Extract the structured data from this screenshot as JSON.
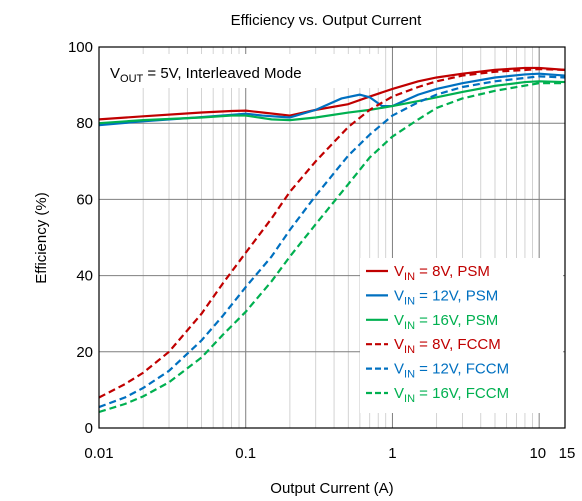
{
  "chart_data": {
    "type": "line",
    "title": "Efficiency vs. Output Current",
    "xlabel": "Output Current (A)",
    "ylabel": "Efficiency (%)",
    "x_scale": "log",
    "xlim": [
      0.01,
      15
    ],
    "ylim": [
      0,
      100
    ],
    "x_ticks": [
      {
        "value": 0.01,
        "label": "0.01"
      },
      {
        "value": 0.1,
        "label": "0.1"
      },
      {
        "value": 1,
        "label": "1"
      },
      {
        "value": 10,
        "label": "10"
      },
      {
        "value": 15,
        "label": "15"
      }
    ],
    "y_ticks": [
      {
        "value": 0,
        "label": "0"
      },
      {
        "value": 20,
        "label": "20"
      },
      {
        "value": 40,
        "label": "40"
      },
      {
        "value": 60,
        "label": "60"
      },
      {
        "value": 80,
        "label": "80"
      },
      {
        "value": 100,
        "label": "100"
      }
    ],
    "grid": true,
    "legend_position": "bottom-right",
    "annotation": {
      "main": "V",
      "sub": "OUT",
      "rest": " = 5V, Interleaved Mode"
    },
    "series": [
      {
        "name": "V_IN = 8V, PSM",
        "legend": {
          "main": "V",
          "sub": "IN",
          "rest": " = 8V, PSM"
        },
        "color": "#c00000",
        "dash": "solid",
        "points": [
          [
            0.01,
            81
          ],
          [
            0.02,
            81.8
          ],
          [
            0.05,
            82.8
          ],
          [
            0.08,
            83.2
          ],
          [
            0.1,
            83.3
          ],
          [
            0.13,
            82.8
          ],
          [
            0.2,
            82
          ],
          [
            0.3,
            83.5
          ],
          [
            0.5,
            85
          ],
          [
            0.7,
            87
          ],
          [
            1,
            89
          ],
          [
            1.5,
            91
          ],
          [
            2,
            92
          ],
          [
            3,
            93
          ],
          [
            5,
            94
          ],
          [
            8,
            94.5
          ],
          [
            10,
            94.5
          ],
          [
            15,
            94
          ]
        ]
      },
      {
        "name": "V_IN = 12V, PSM",
        "legend": {
          "main": "V",
          "sub": "IN",
          "rest": " = 12V, PSM"
        },
        "color": "#0070c0",
        "dash": "solid",
        "points": [
          [
            0.01,
            79.5
          ],
          [
            0.02,
            80.5
          ],
          [
            0.05,
            81.6
          ],
          [
            0.08,
            82.2
          ],
          [
            0.1,
            82.5
          ],
          [
            0.13,
            82
          ],
          [
            0.2,
            81.5
          ],
          [
            0.3,
            83.5
          ],
          [
            0.45,
            86.5
          ],
          [
            0.6,
            87.5
          ],
          [
            0.7,
            86.8
          ],
          [
            0.85,
            84.5
          ],
          [
            1,
            84.5
          ],
          [
            1.5,
            87.5
          ],
          [
            2,
            89
          ],
          [
            3,
            90.5
          ],
          [
            5,
            92
          ],
          [
            8,
            92.8
          ],
          [
            10,
            93
          ],
          [
            15,
            92.5
          ]
        ]
      },
      {
        "name": "V_IN = 16V, PSM",
        "legend": {
          "main": "V",
          "sub": "IN",
          "rest": " = 16V, PSM"
        },
        "color": "#00b050",
        "dash": "solid",
        "points": [
          [
            0.01,
            80
          ],
          [
            0.02,
            80.8
          ],
          [
            0.05,
            81.5
          ],
          [
            0.08,
            82
          ],
          [
            0.1,
            82
          ],
          [
            0.15,
            81
          ],
          [
            0.2,
            80.8
          ],
          [
            0.3,
            81.5
          ],
          [
            0.5,
            82.8
          ],
          [
            0.7,
            83.5
          ],
          [
            1,
            84.5
          ],
          [
            1.5,
            85.8
          ],
          [
            2,
            86.8
          ],
          [
            3,
            88.2
          ],
          [
            5,
            89.8
          ],
          [
            8,
            90.8
          ],
          [
            10,
            91
          ],
          [
            15,
            90.8
          ]
        ]
      },
      {
        "name": "V_IN = 8V, FCCM",
        "legend": {
          "main": "V",
          "sub": "IN",
          "rest": " = 8V, FCCM"
        },
        "color": "#c00000",
        "dash": "dashed",
        "points": [
          [
            0.01,
            8
          ],
          [
            0.015,
            11.5
          ],
          [
            0.02,
            14.5
          ],
          [
            0.03,
            20
          ],
          [
            0.05,
            30
          ],
          [
            0.07,
            38
          ],
          [
            0.1,
            46
          ],
          [
            0.15,
            55
          ],
          [
            0.2,
            62
          ],
          [
            0.3,
            70
          ],
          [
            0.5,
            79
          ],
          [
            0.7,
            83.5
          ],
          [
            1,
            87
          ],
          [
            1.5,
            89.5
          ],
          [
            2,
            91
          ],
          [
            3,
            92.5
          ],
          [
            5,
            93.5
          ],
          [
            10,
            94.2
          ],
          [
            15,
            94
          ]
        ]
      },
      {
        "name": "V_IN = 12V, FCCM",
        "legend": {
          "main": "V",
          "sub": "IN",
          "rest": " = 12V, FCCM"
        },
        "color": "#0070c0",
        "dash": "dashed",
        "points": [
          [
            0.01,
            5.5
          ],
          [
            0.015,
            8
          ],
          [
            0.02,
            10.5
          ],
          [
            0.03,
            15
          ],
          [
            0.05,
            23
          ],
          [
            0.07,
            29.5
          ],
          [
            0.1,
            37
          ],
          [
            0.15,
            45
          ],
          [
            0.2,
            52
          ],
          [
            0.3,
            61
          ],
          [
            0.5,
            71.5
          ],
          [
            0.7,
            77
          ],
          [
            1,
            82
          ],
          [
            1.5,
            85.5
          ],
          [
            2,
            87.5
          ],
          [
            3,
            89.5
          ],
          [
            5,
            91
          ],
          [
            10,
            92.3
          ],
          [
            15,
            92
          ]
        ]
      },
      {
        "name": "V_IN = 16V, FCCM",
        "legend": {
          "main": "V",
          "sub": "IN",
          "rest": " = 16V, FCCM"
        },
        "color": "#00b050",
        "dash": "dashed",
        "points": [
          [
            0.01,
            4.2
          ],
          [
            0.015,
            6.3
          ],
          [
            0.02,
            8.3
          ],
          [
            0.03,
            12
          ],
          [
            0.05,
            18.5
          ],
          [
            0.07,
            24.5
          ],
          [
            0.1,
            30.5
          ],
          [
            0.15,
            38.5
          ],
          [
            0.2,
            45
          ],
          [
            0.3,
            53.5
          ],
          [
            0.5,
            64
          ],
          [
            0.7,
            71
          ],
          [
            1,
            76.5
          ],
          [
            1.5,
            81
          ],
          [
            2,
            84
          ],
          [
            3,
            86.5
          ],
          [
            5,
            88.5
          ],
          [
            10,
            90.5
          ],
          [
            15,
            90.5
          ]
        ]
      }
    ]
  }
}
